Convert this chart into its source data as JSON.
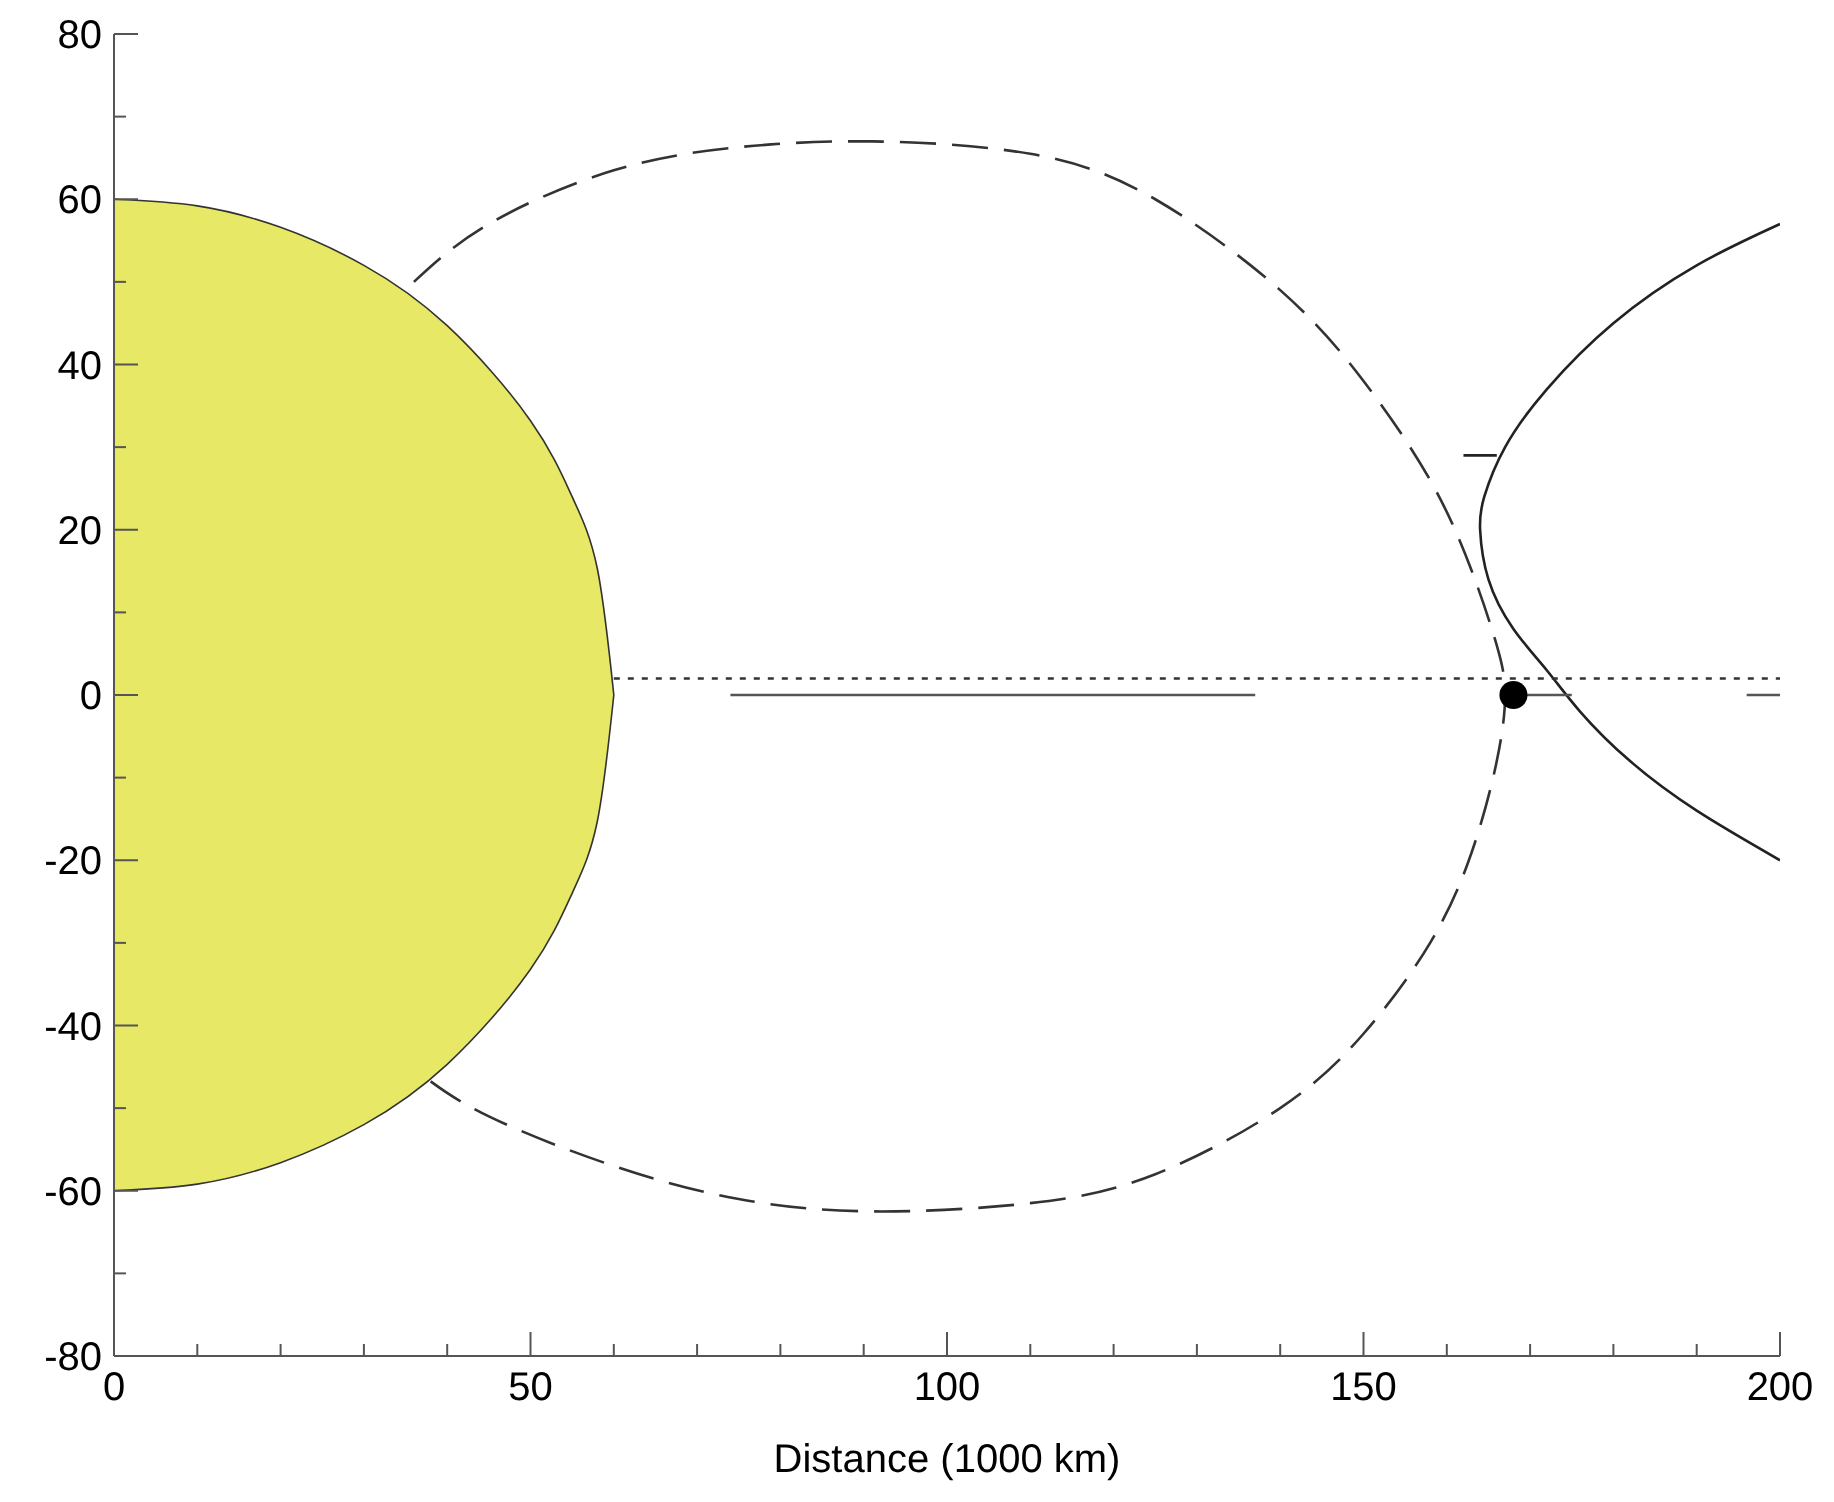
{
  "chart_data": {
    "type": "line",
    "xlabel": "Distance (1000 km)",
    "xlim": [
      0,
      200
    ],
    "ylim": [
      -80,
      80
    ],
    "xticks": [
      0,
      {
        "value": 10,
        "label": null
      },
      {
        "value": 20,
        "label": null
      },
      {
        "value": 30,
        "label": null
      },
      {
        "value": 40,
        "label": null
      },
      50,
      {
        "value": 60,
        "label": null
      },
      {
        "value": 70,
        "label": null
      },
      {
        "value": 80,
        "label": null
      },
      {
        "value": 90,
        "label": null
      },
      100,
      {
        "value": 110,
        "label": null
      },
      {
        "value": 120,
        "label": null
      },
      {
        "value": 130,
        "label": null
      },
      {
        "value": 140,
        "label": null
      },
      150,
      {
        "value": 160,
        "label": null
      },
      {
        "value": 170,
        "label": null
      },
      {
        "value": 180,
        "label": null
      },
      {
        "value": 190,
        "label": null
      },
      200
    ],
    "yticks": [
      -80,
      {
        "value": -70,
        "label": null
      },
      -60,
      {
        "value": -50,
        "label": null
      },
      -40,
      {
        "value": -30,
        "label": null
      },
      -20,
      {
        "value": -10,
        "label": null
      },
      0,
      {
        "value": 10,
        "label": null
      },
      20,
      {
        "value": 30,
        "label": null
      },
      40,
      {
        "value": 50,
        "label": null
      },
      60,
      {
        "value": 70,
        "label": null
      },
      80
    ],
    "series": [
      {
        "type": "area",
        "color": "#e6e866",
        "x": [
          0,
          10,
          20,
          30,
          40,
          50,
          55,
          58,
          60
        ],
        "values": [
          60,
          59.2,
          56.6,
          52,
          44.7,
          33.2,
          24,
          15.4,
          0
        ]
      },
      {
        "type": "area",
        "color": "#e6e866",
        "x": [
          0,
          10,
          20,
          30,
          40,
          50,
          55,
          58,
          60
        ],
        "values": [
          -60,
          -59.2,
          -56.6,
          -52,
          -44.7,
          -33.2,
          -24,
          -15.4,
          0
        ]
      },
      {
        "color": "#333333",
        "line_style": "dashed",
        "x": [
          36,
          45,
          60,
          75,
          91,
          110,
          125,
          140,
          150,
          158,
          163,
          166,
          167,
          166,
          163,
          158,
          150,
          140,
          125,
          110,
          91,
          75,
          60,
          45,
          37
        ],
        "values": [
          50,
          57,
          63.5,
          66.3,
          67,
          65.5,
          60,
          49,
          38,
          26,
          15,
          6,
          0,
          -8,
          -19,
          -30,
          -41,
          -50,
          -58,
          -61.5,
          -62.5,
          -61,
          -57,
          -51,
          -46
        ]
      },
      {
        "color": "#222222",
        "line_style": "solid",
        "x": [
          200,
          190,
          180,
          172,
          167,
          164.5,
          164,
          165,
          168,
          172,
          176,
          182,
          190,
          200
        ],
        "values": [
          57,
          52,
          45,
          37,
          30,
          24,
          20,
          14,
          8,
          3,
          -2,
          -8,
          -14,
          -20
        ]
      },
      {
        "color": "#222222",
        "line_style": "solid",
        "x": [
          162,
          166
        ],
        "values": [
          29,
          29
        ]
      },
      {
        "color": "#333333",
        "line_style": "dotted",
        "x": [
          60,
          200
        ],
        "values": [
          2,
          2
        ]
      },
      {
        "color": "#555555",
        "line_style": "solid",
        "x": [
          74,
          137,
          138,
          168,
          175,
          176,
          196,
          200
        ],
        "values": [
          0,
          0,
          null,
          0,
          0,
          null,
          0,
          0
        ]
      },
      {
        "type": "scatter",
        "color": "#000000",
        "marker": "circle",
        "x": [
          168
        ],
        "values": [
          0
        ]
      }
    ]
  }
}
